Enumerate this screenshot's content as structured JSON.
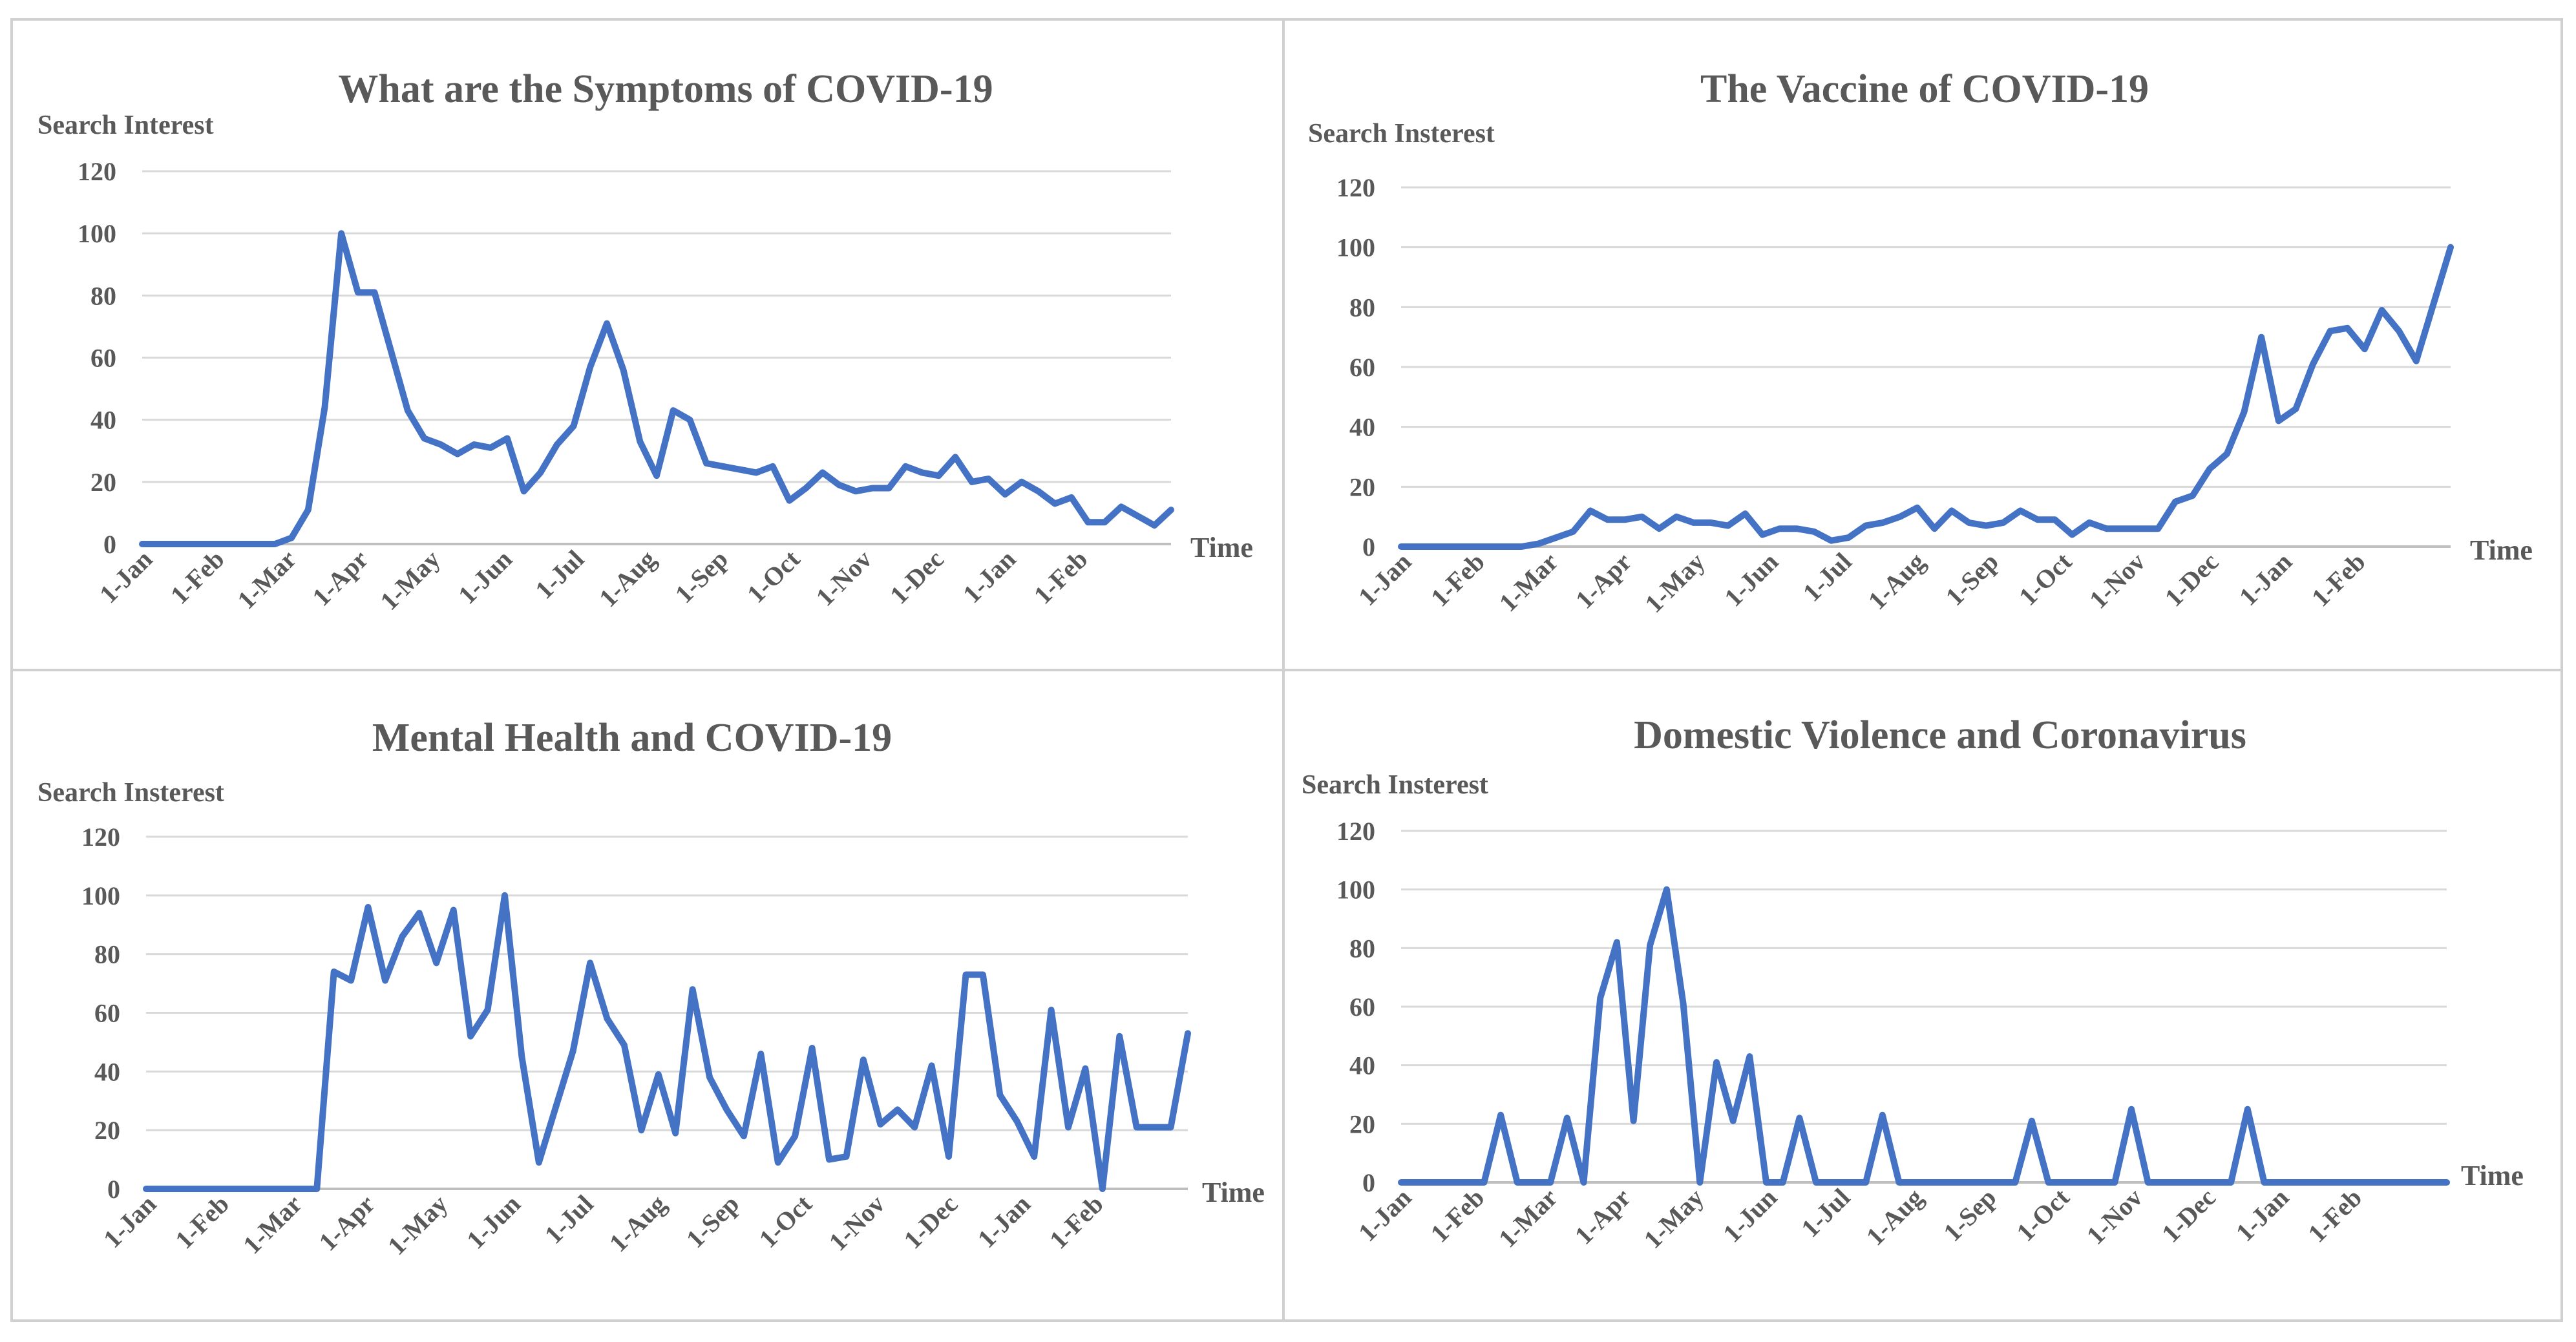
{
  "chart_data": [
    {
      "type": "line",
      "title": "What are the Symptoms of COVID-19",
      "ylabel": "Search Interest",
      "xlabel": "Time",
      "ylim": [
        0,
        120
      ],
      "yticks": [
        0,
        20,
        40,
        60,
        80,
        100,
        120
      ],
      "grid": true,
      "legend": "none",
      "x_tick_labels": [
        "1-Jan",
        "1-Feb",
        "1-Mar",
        "1-Apr",
        "1-May",
        "1-Jun",
        "1-Jul",
        "1-Aug",
        "1-Sep",
        "1-Oct",
        "1-Nov",
        "1-Dec",
        "1-Jan",
        "1-Feb"
      ],
      "series": [
        {
          "name": "Search Interest",
          "color": "#4472c4",
          "values": [
            0,
            0,
            0,
            0,
            0,
            0,
            0,
            0,
            0,
            2,
            11,
            44,
            100,
            81,
            81,
            62,
            43,
            34,
            32,
            29,
            32,
            31,
            34,
            17,
            23,
            32,
            38,
            57,
            71,
            56,
            33,
            22,
            43,
            40,
            26,
            25,
            24,
            23,
            25,
            14,
            18,
            23,
            19,
            17,
            18,
            18,
            25,
            23,
            22,
            28,
            20,
            21,
            16,
            20,
            17,
            13,
            15,
            7,
            7,
            12,
            9,
            6,
            11
          ]
        }
      ]
    },
    {
      "type": "line",
      "title": "The Vaccine of COVID-19",
      "ylabel": "Search Insterest",
      "xlabel": "Time",
      "ylim": [
        0,
        120
      ],
      "yticks": [
        0,
        20,
        40,
        60,
        80,
        100,
        120
      ],
      "grid": true,
      "legend": "none",
      "x_tick_labels": [
        "1-Jan",
        "1-Feb",
        "1-Mar",
        "1-Apr",
        "1-May",
        "1-Jun",
        "1-Jul",
        "1-Aug",
        "1-Sep",
        "1-Oct",
        "1-Nov",
        "1-Dec",
        "1-Jan",
        "1-Feb"
      ],
      "series": [
        {
          "name": "Search Interest",
          "color": "#4472c4",
          "values": [
            0,
            0,
            0,
            0,
            0,
            0,
            0,
            0,
            1,
            3,
            5,
            12,
            9,
            9,
            10,
            6,
            10,
            8,
            8,
            7,
            11,
            4,
            6,
            6,
            5,
            2,
            3,
            7,
            8,
            10,
            13,
            6,
            12,
            8,
            7,
            8,
            12,
            9,
            9,
            4,
            8,
            6,
            6,
            6,
            6,
            15,
            17,
            26,
            31,
            45,
            70,
            42,
            46,
            61,
            72,
            73,
            66,
            79,
            72,
            62,
            81,
            100
          ]
        }
      ]
    },
    {
      "type": "line",
      "title": "Mental Health and COVID-19",
      "ylabel": "Search Insterest",
      "xlabel": "Time",
      "ylim": [
        0,
        120
      ],
      "yticks": [
        0,
        20,
        40,
        60,
        80,
        100,
        120
      ],
      "grid": true,
      "legend": "none",
      "x_tick_labels": [
        "1-Jan",
        "1-Feb",
        "1-Mar",
        "1-Apr",
        "1-May",
        "1-Jun",
        "1-Jul",
        "1-Aug",
        "1-Sep",
        "1-Oct",
        "1-Nov",
        "1-Dec",
        "1-Jan",
        "1-Feb"
      ],
      "series": [
        {
          "name": "Search Interest",
          "color": "#4472c4",
          "values": [
            0,
            0,
            0,
            0,
            0,
            0,
            0,
            0,
            0,
            0,
            0,
            74,
            71,
            96,
            71,
            86,
            94,
            77,
            95,
            52,
            61,
            100,
            45,
            9,
            28,
            47,
            77,
            58,
            49,
            20,
            39,
            19,
            68,
            38,
            27,
            18,
            46,
            9,
            18,
            48,
            10,
            11,
            44,
            22,
            27,
            21,
            42,
            11,
            73,
            73,
            32,
            23,
            11,
            61,
            21,
            41,
            0,
            52,
            21,
            21,
            21,
            53
          ]
        }
      ]
    },
    {
      "type": "line",
      "title": "Domestic Violence and Coronavirus",
      "ylabel": "Search Insterest",
      "xlabel": "Time",
      "ylim": [
        0,
        120
      ],
      "yticks": [
        0,
        20,
        40,
        60,
        80,
        100,
        120
      ],
      "grid": true,
      "legend": "none",
      "x_tick_labels": [
        "1-Jan",
        "1-Feb",
        "1-Mar",
        "1-Apr",
        "1-May",
        "1-Jun",
        "1-Jul",
        "1-Aug",
        "1-Sep",
        "1-Oct",
        "1-Nov",
        "1-Dec",
        "1-Jan",
        "1-Feb"
      ],
      "series": [
        {
          "name": "Search Interest",
          "color": "#4472c4",
          "values": [
            0,
            0,
            0,
            0,
            0,
            0,
            23,
            0,
            0,
            0,
            22,
            0,
            63,
            82,
            21,
            81,
            100,
            61,
            0,
            41,
            21,
            43,
            0,
            0,
            22,
            0,
            0,
            0,
            0,
            23,
            0,
            0,
            0,
            0,
            0,
            0,
            0,
            0,
            21,
            0,
            0,
            0,
            0,
            0,
            25,
            0,
            0,
            0,
            0,
            0,
            0,
            25,
            0,
            0,
            0,
            0,
            0,
            0,
            0,
            0,
            0,
            0,
            0,
            0
          ]
        }
      ]
    }
  ]
}
